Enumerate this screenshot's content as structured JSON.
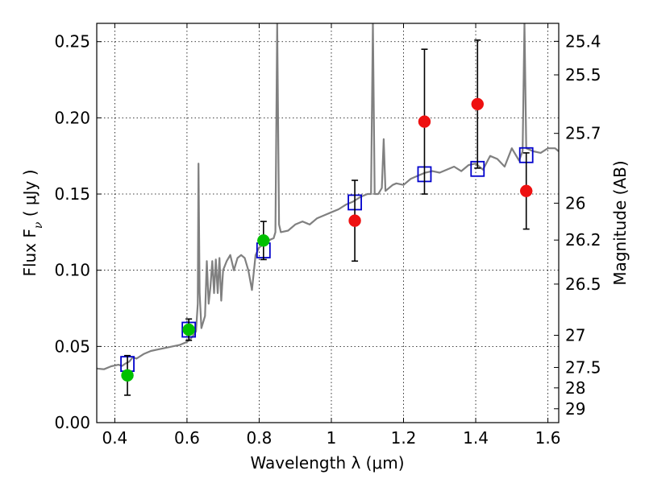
{
  "chart_data": {
    "type": "scatter",
    "xlabel": "Wavelength  λ (μm)",
    "ylabel": "Flux  F",
    "ylabel_sub": "ν",
    "ylabel_unit": "  ( μJy )",
    "y2label": "Magnitude (AB)",
    "xlim": [
      0.35,
      1.63
    ],
    "ylim": [
      0.0,
      0.262
    ],
    "x_ticks": [
      0.4,
      0.6,
      0.8,
      1.0,
      1.2,
      1.4,
      1.6
    ],
    "x_tick_labels": [
      "0.4",
      "0.6",
      "0.8",
      "1",
      "1.2",
      "1.4",
      "1.6"
    ],
    "y_ticks": [
      0.0,
      0.05,
      0.1,
      0.15,
      0.2,
      0.25
    ],
    "y_tick_labels": [
      "0.00",
      "0.05",
      "0.10",
      "0.15",
      "0.20",
      "0.25"
    ],
    "y2_ticks": [
      {
        "label": "25.4",
        "flux": 0.2502
      },
      {
        "label": "25.5",
        "flux": 0.2282
      },
      {
        "label": "25.7",
        "flux": 0.1898
      },
      {
        "label": "26",
        "flux": 0.144
      },
      {
        "label": "26.2",
        "flux": 0.1198
      },
      {
        "label": "26.5",
        "flux": 0.0909
      },
      {
        "label": "27",
        "flux": 0.0573
      },
      {
        "label": "27.5",
        "flux": 0.0362
      },
      {
        "label": "28",
        "flux": 0.0228
      },
      {
        "label": "29",
        "flux": 0.0091
      }
    ],
    "grid": true,
    "series": [
      {
        "kind": "line",
        "color": "#808080",
        "points": [
          [
            0.35,
            0.0355
          ],
          [
            0.37,
            0.035
          ],
          [
            0.39,
            0.037
          ],
          [
            0.41,
            0.038
          ],
          [
            0.42,
            0.0372
          ],
          [
            0.43,
            0.0388
          ],
          [
            0.44,
            0.04
          ],
          [
            0.45,
            0.043
          ],
          [
            0.46,
            0.042
          ],
          [
            0.48,
            0.045
          ],
          [
            0.5,
            0.047
          ],
          [
            0.52,
            0.048
          ],
          [
            0.54,
            0.049
          ],
          [
            0.56,
            0.05
          ],
          [
            0.58,
            0.051
          ],
          [
            0.6,
            0.053
          ],
          [
            0.61,
            0.055
          ],
          [
            0.62,
            0.058
          ],
          [
            0.625,
            0.06
          ],
          [
            0.63,
            0.078
          ],
          [
            0.632,
            0.17
          ],
          [
            0.635,
            0.085
          ],
          [
            0.64,
            0.062
          ],
          [
            0.65,
            0.07
          ],
          [
            0.655,
            0.106
          ],
          [
            0.66,
            0.078
          ],
          [
            0.665,
            0.089
          ],
          [
            0.67,
            0.106
          ],
          [
            0.675,
            0.085
          ],
          [
            0.68,
            0.107
          ],
          [
            0.685,
            0.085
          ],
          [
            0.69,
            0.108
          ],
          [
            0.695,
            0.08
          ],
          [
            0.7,
            0.1
          ],
          [
            0.71,
            0.106
          ],
          [
            0.72,
            0.11
          ],
          [
            0.73,
            0.1
          ],
          [
            0.74,
            0.108
          ],
          [
            0.75,
            0.11
          ],
          [
            0.76,
            0.108
          ],
          [
            0.77,
            0.1
          ],
          [
            0.78,
            0.087
          ],
          [
            0.79,
            0.11
          ],
          [
            0.8,
            0.115
          ],
          [
            0.82,
            0.118
          ],
          [
            0.83,
            0.12
          ],
          [
            0.84,
            0.121
          ],
          [
            0.845,
            0.125
          ],
          [
            0.85,
            0.262
          ],
          [
            0.855,
            0.13
          ],
          [
            0.86,
            0.125
          ],
          [
            0.88,
            0.126
          ],
          [
            0.9,
            0.13
          ],
          [
            0.92,
            0.132
          ],
          [
            0.94,
            0.13
          ],
          [
            0.96,
            0.134
          ],
          [
            0.98,
            0.136
          ],
          [
            1.0,
            0.138
          ],
          [
            1.02,
            0.14
          ],
          [
            1.04,
            0.143
          ],
          [
            1.06,
            0.145
          ],
          [
            1.08,
            0.148
          ],
          [
            1.1,
            0.15
          ],
          [
            1.11,
            0.15
          ],
          [
            1.115,
            0.262
          ],
          [
            1.12,
            0.15
          ],
          [
            1.13,
            0.15
          ],
          [
            1.14,
            0.154
          ],
          [
            1.145,
            0.186
          ],
          [
            1.15,
            0.152
          ],
          [
            1.17,
            0.156
          ],
          [
            1.18,
            0.157
          ],
          [
            1.2,
            0.156
          ],
          [
            1.22,
            0.16
          ],
          [
            1.24,
            0.162
          ],
          [
            1.26,
            0.164
          ],
          [
            1.28,
            0.165
          ],
          [
            1.3,
            0.164
          ],
          [
            1.32,
            0.166
          ],
          [
            1.34,
            0.168
          ],
          [
            1.36,
            0.165
          ],
          [
            1.38,
            0.169
          ],
          [
            1.4,
            0.17
          ],
          [
            1.42,
            0.166
          ],
          [
            1.44,
            0.175
          ],
          [
            1.46,
            0.173
          ],
          [
            1.48,
            0.168
          ],
          [
            1.5,
            0.18
          ],
          [
            1.52,
            0.172
          ],
          [
            1.53,
            0.178
          ],
          [
            1.535,
            0.262
          ],
          [
            1.54,
            0.18
          ],
          [
            1.56,
            0.178
          ],
          [
            1.58,
            0.177
          ],
          [
            1.6,
            0.18
          ],
          [
            1.62,
            0.18
          ],
          [
            1.63,
            0.178
          ]
        ]
      },
      {
        "kind": "markers",
        "marker": "square",
        "color": "#0000cc",
        "points": [
          [
            0.435,
            0.0385
          ],
          [
            0.605,
            0.061
          ],
          [
            0.812,
            0.113
          ],
          [
            1.065,
            0.1445
          ],
          [
            1.258,
            0.163
          ],
          [
            1.405,
            0.1665
          ],
          [
            1.54,
            0.1755
          ]
        ]
      },
      {
        "kind": "markers",
        "marker": "circle",
        "color": "#00c000",
        "points": [
          {
            "x": 0.435,
            "y": 0.031,
            "err": 0.013
          },
          {
            "x": 0.605,
            "y": 0.061,
            "err": 0.007
          },
          {
            "x": 0.812,
            "y": 0.1195,
            "err": 0.0125
          }
        ]
      },
      {
        "kind": "markers",
        "marker": "circle",
        "color": "#ee1111",
        "points": [
          {
            "x": 1.065,
            "y": 0.1325,
            "err": 0.0265
          },
          {
            "x": 1.258,
            "y": 0.1975,
            "err": 0.0475
          },
          {
            "x": 1.405,
            "y": 0.209,
            "err": 0.042
          },
          {
            "x": 1.54,
            "y": 0.152,
            "err": 0.025
          }
        ]
      }
    ]
  }
}
